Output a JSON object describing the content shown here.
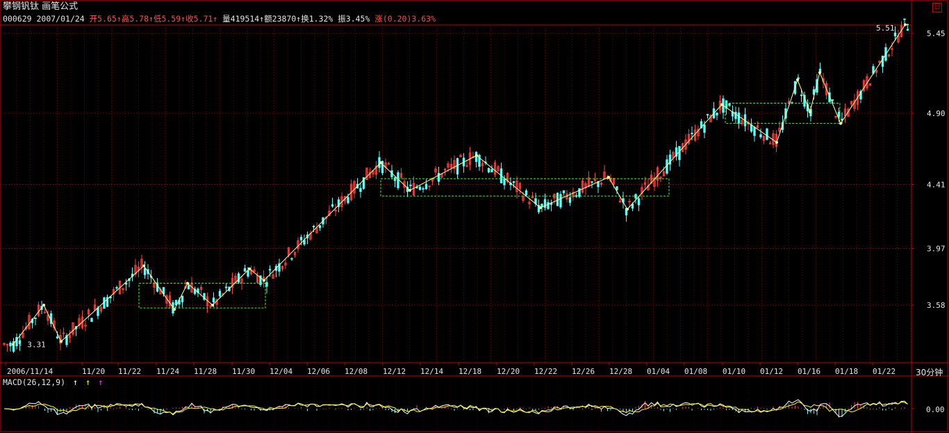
{
  "stock": {
    "name": "攀钢钒钛",
    "subtitle": "画笔公式",
    "code": "000629",
    "date": "2007/01/24"
  },
  "quote": {
    "open_label": "开",
    "open": "5.65",
    "high_label": "高",
    "high": "5.78",
    "low_label": "低",
    "low": "5.59",
    "close_label": "收",
    "close": "5.71",
    "volume_label": "量",
    "volume": "419514",
    "amount_label": "额",
    "amount": "23870",
    "turnover_label": "换",
    "turnover": "1.32%",
    "amplitude_label": "振",
    "amplitude": "3.45%",
    "change_label": "涨",
    "change": "(0.20)",
    "change_pct": "3.63%",
    "up_arrow": "↑"
  },
  "chart_data": {
    "type": "candlestick",
    "period": "30分钟",
    "price_axis": [
      "5.45",
      "4.90",
      "4.41",
      "3.97",
      "3.58"
    ],
    "x_labels": [
      "2006/11/14",
      "11/20",
      "11/22",
      "11/24",
      "11/28",
      "11/30",
      "12/04",
      "12/06",
      "12/08",
      "12/12",
      "12/14",
      "12/18",
      "12/20",
      "12/22",
      "12/26",
      "12/28",
      "01/04",
      "01/08",
      "01/10",
      "01/12",
      "01/16",
      "01/18",
      "01/22"
    ],
    "annotations": {
      "low_mark": "3.31",
      "high_mark": "5.51"
    },
    "zigzag_pivots": [
      3.31,
      3.58,
      3.33,
      3.85,
      3.55,
      3.73,
      3.58,
      3.83,
      3.75,
      4.56,
      4.37,
      4.61,
      4.25,
      4.46,
      4.24,
      4.96,
      4.7,
      5.13,
      4.91,
      5.18,
      4.83,
      5.51
    ],
    "boxes": [
      {
        "top": 3.73,
        "bottom": 3.56
      },
      {
        "top": 4.45,
        "bottom": 4.33
      },
      {
        "top": 4.97,
        "bottom": 4.83
      }
    ],
    "grid": true,
    "macd": {
      "label": "MACD(26,12,9)",
      "axis_value": "0.00"
    }
  },
  "colors": {
    "up": "#ff3c3c",
    "down": "#54ffff",
    "zigzag": "#ffff99",
    "box": "#33ff33",
    "grid": "#7a0000",
    "axis": "#c00000",
    "dif": "#ffffff",
    "dea": "#ffff00"
  },
  "macd_arrows": [
    "↑",
    "↑",
    "↑"
  ],
  "icons": {
    "corner": "restore-window-icon"
  }
}
